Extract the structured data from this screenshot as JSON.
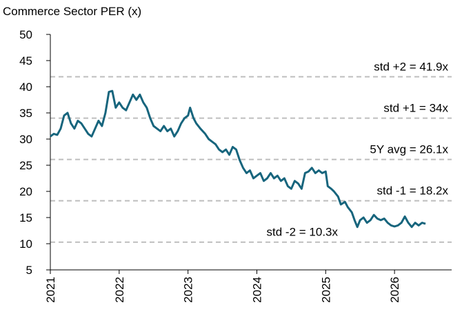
{
  "chart_data": {
    "type": "line",
    "title": "Commerce Sector PER (x)",
    "xlim": [
      2021,
      2026.83
    ],
    "xticks": [
      2021,
      2022,
      2023,
      2024,
      2025,
      2026
    ],
    "ylim": [
      5,
      50
    ],
    "yticks": [
      5,
      10,
      15,
      20,
      25,
      30,
      35,
      40,
      45,
      50
    ],
    "reference_lines": [
      {
        "value": 41.9,
        "label": "std +2 = 41.9x"
      },
      {
        "value": 34,
        "label": "std +1 = 34x"
      },
      {
        "value": 26.1,
        "label": "5Y avg = 26.1x"
      },
      {
        "value": 18.2,
        "label": "std -1 = 18.2x"
      },
      {
        "value": 10.3,
        "label": "std -2 = 10.3x"
      }
    ],
    "reference_color": "#bdbdbd",
    "series": [
      {
        "color": "#17657d",
        "x": [
          2021.0,
          2021.05,
          2021.1,
          2021.15,
          2021.2,
          2021.25,
          2021.3,
          2021.35,
          2021.4,
          2021.45,
          2021.5,
          2021.55,
          2021.6,
          2021.65,
          2021.7,
          2021.75,
          2021.8,
          2021.85,
          2021.9,
          2021.95,
          2022.0,
          2022.05,
          2022.1,
          2022.15,
          2022.2,
          2022.25,
          2022.3,
          2022.35,
          2022.4,
          2022.45,
          2022.5,
          2022.55,
          2022.6,
          2022.65,
          2022.7,
          2022.75,
          2022.8,
          2022.85,
          2022.9,
          2022.95,
          2023.0,
          2023.03,
          2023.08,
          2023.12,
          2023.18,
          2023.25,
          2023.3,
          2023.35,
          2023.4,
          2023.45,
          2023.5,
          2023.55,
          2023.6,
          2023.65,
          2023.7,
          2023.75,
          2023.8,
          2023.85,
          2023.9,
          2023.95,
          2024.0,
          2024.05,
          2024.1,
          2024.15,
          2024.2,
          2024.25,
          2024.3,
          2024.35,
          2024.4,
          2024.45,
          2024.5,
          2024.55,
          2024.6,
          2024.65,
          2024.7,
          2024.75,
          2024.8,
          2024.85,
          2024.9,
          2024.95,
          2025.0,
          2025.03,
          2025.08,
          2025.12,
          2025.18,
          2025.22,
          2025.28,
          2025.32,
          2025.38,
          2025.42,
          2025.46,
          2025.5,
          2025.55,
          2025.6,
          2025.65,
          2025.7,
          2025.75,
          2025.8,
          2025.85,
          2025.9,
          2025.95,
          2026.0,
          2026.05,
          2026.1,
          2026.15,
          2026.2,
          2026.25,
          2026.3,
          2026.35,
          2026.4,
          2026.45
        ],
        "values": [
          30.5,
          31,
          30.8,
          32,
          34.5,
          35,
          33,
          32,
          33.5,
          33,
          32,
          31,
          30.5,
          32,
          33.5,
          32.5,
          35,
          39,
          39.2,
          36,
          37,
          36,
          35.5,
          37,
          38.5,
          37.5,
          38.5,
          37,
          36,
          34,
          32.5,
          32,
          31.5,
          32.5,
          31.5,
          32,
          30.5,
          31.5,
          33,
          34,
          34.5,
          36,
          34,
          33,
          32,
          31,
          30,
          29.5,
          29,
          28,
          27.5,
          28,
          27,
          28.5,
          28,
          26,
          24.5,
          23.5,
          24,
          22.5,
          23,
          23.5,
          22,
          22.5,
          23.5,
          22.5,
          23,
          22,
          22.5,
          21,
          20.5,
          22,
          21.5,
          20.5,
          23.5,
          23.8,
          24.5,
          23.5,
          24,
          23.5,
          23.8,
          21,
          20.5,
          20,
          19,
          17.5,
          18,
          17,
          16,
          14.5,
          13.2,
          14.5,
          15,
          14,
          14.5,
          15.5,
          14.8,
          14.5,
          14.8,
          14,
          13.5,
          13.3,
          13.5,
          14,
          15.2,
          14,
          13.2,
          14,
          13.5,
          14,
          13.8
        ]
      }
    ]
  }
}
